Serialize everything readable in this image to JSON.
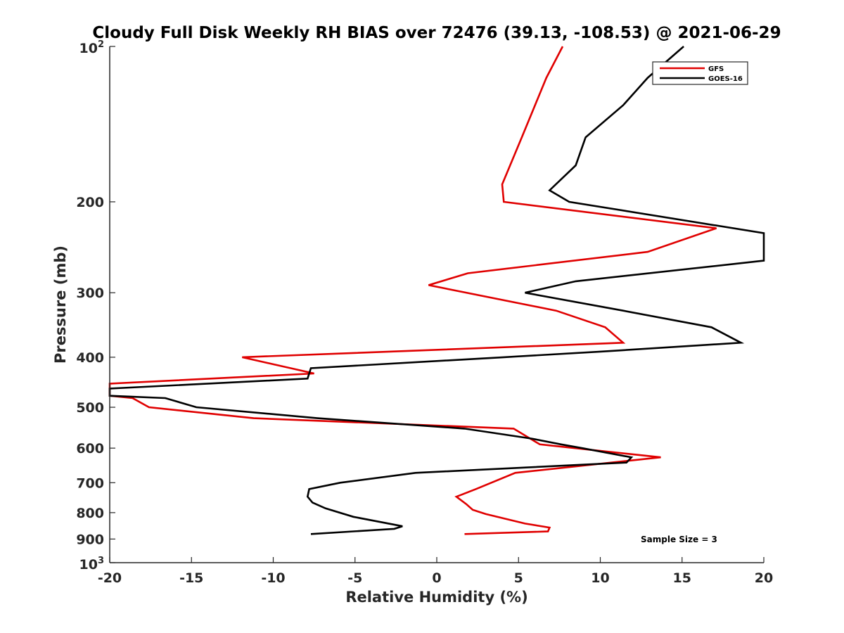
{
  "chart_data": {
    "type": "line",
    "title": "Cloudy Full Disk Weekly RH BIAS over 72476 (39.13, -108.53) @ 2021-06-29",
    "xlabel": "Relative Humidity (%)",
    "ylabel": "Pressure (mb)",
    "xlim": [
      -20,
      20
    ],
    "ylim": [
      100,
      1000
    ],
    "yscale": "log",
    "y_reversed": true,
    "grid": false,
    "legend_position": "top-right",
    "x_ticks": [
      "-20",
      "-15",
      "-10",
      "-5",
      "0",
      "5",
      "10",
      "15",
      "20"
    ],
    "y_ticks": [
      {
        "value": 100,
        "base": "10",
        "exp": "2"
      },
      {
        "value": 200,
        "label": "200"
      },
      {
        "value": 300,
        "label": "300"
      },
      {
        "value": 400,
        "label": "400"
      },
      {
        "value": 500,
        "label": "500"
      },
      {
        "value": 600,
        "label": "600"
      },
      {
        "value": 700,
        "label": "700"
      },
      {
        "value": 800,
        "label": "800"
      },
      {
        "value": 900,
        "label": "900"
      },
      {
        "value": 1000,
        "base": "10",
        "exp": "3"
      }
    ],
    "series": [
      {
        "name": "GFS",
        "color": "#e00000",
        "points": [
          [
            7.7,
            100
          ],
          [
            6.7,
            115
          ],
          [
            5.2,
            150
          ],
          [
            4.0,
            185
          ],
          [
            4.1,
            200
          ],
          [
            17.1,
            225
          ],
          [
            12.9,
            250
          ],
          [
            1.9,
            275
          ],
          [
            -0.5,
            290
          ],
          [
            7.3,
            325
          ],
          [
            10.3,
            350
          ],
          [
            11.4,
            375
          ],
          [
            -11.9,
            400
          ],
          [
            -7.5,
            430
          ],
          [
            -20,
            450
          ],
          [
            -20,
            475
          ],
          [
            -18.6,
            480
          ],
          [
            -17.6,
            500
          ],
          [
            -11.2,
            525
          ],
          [
            4.7,
            550
          ],
          [
            6.3,
            590
          ],
          [
            13.7,
            625
          ],
          [
            4.8,
            670
          ],
          [
            2.4,
            720
          ],
          [
            1.2,
            745
          ],
          [
            1.8,
            770
          ],
          [
            2.2,
            790
          ],
          [
            3.0,
            805
          ],
          [
            5.4,
            840
          ],
          [
            6.9,
            855
          ],
          [
            6.8,
            870
          ],
          [
            1.7,
            880
          ]
        ]
      },
      {
        "name": "GOES-16",
        "color": "#000000",
        "points": [
          [
            15.1,
            100
          ],
          [
            12.9,
            115
          ],
          [
            11.4,
            130
          ],
          [
            9.1,
            150
          ],
          [
            8.5,
            170
          ],
          [
            6.9,
            190
          ],
          [
            8.1,
            200
          ],
          [
            20,
            230
          ],
          [
            20,
            260
          ],
          [
            8.5,
            285
          ],
          [
            5.4,
            300
          ],
          [
            11.4,
            325
          ],
          [
            16.8,
            350
          ],
          [
            18.6,
            375
          ],
          [
            10.1,
            390
          ],
          [
            4.1,
            400
          ],
          [
            -7.7,
            420
          ],
          [
            -7.9,
            440
          ],
          [
            -20,
            460
          ],
          [
            -20,
            475
          ],
          [
            -16.6,
            480
          ],
          [
            -14.7,
            500
          ],
          [
            -7.3,
            525
          ],
          [
            1.7,
            550
          ],
          [
            5.8,
            575
          ],
          [
            7.6,
            590
          ],
          [
            8.9,
            600
          ],
          [
            11.9,
            625
          ],
          [
            11.6,
            640
          ],
          [
            -1.3,
            670
          ],
          [
            -5.9,
            700
          ],
          [
            -7.8,
            720
          ],
          [
            -7.9,
            745
          ],
          [
            -7.6,
            765
          ],
          [
            -6.8,
            785
          ],
          [
            -5.1,
            815
          ],
          [
            -2.1,
            850
          ],
          [
            -2.6,
            860
          ],
          [
            -7.7,
            880
          ]
        ]
      }
    ],
    "annotation": "Sample Size = 3"
  }
}
